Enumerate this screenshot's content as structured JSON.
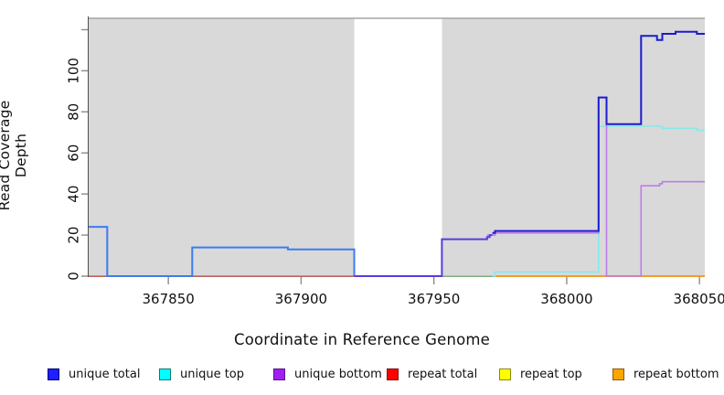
{
  "figure": {
    "xlabel": "Coordinate in Reference Genome",
    "ylabel": "Read Coverage Depth"
  },
  "chart_data": {
    "type": "line",
    "subtype": "step-after-coverage-plot",
    "title": "",
    "xlabel": "Coordinate in Reference Genome",
    "ylabel": "Read Coverage Depth",
    "xlim": [
      367820,
      368052
    ],
    "ylim": [
      0,
      126
    ],
    "x_ticks": [
      367850,
      367900,
      367950,
      368000,
      368050
    ],
    "y_ticks": [
      0,
      20,
      40,
      60,
      80,
      100
    ],
    "y_unlabeled_ticks": [
      120
    ],
    "grid": false,
    "legend_position": "bottom",
    "plot_bg_color": "#d9d9d9",
    "background_regions": [
      {
        "x0": 367820,
        "x1": 367920,
        "color": "#d9d9d9"
      },
      {
        "x0": 367920,
        "x1": 367953,
        "color": "#ffffff"
      },
      {
        "x0": 367953,
        "x1": 368052,
        "color": "#d9d9d9"
      }
    ],
    "top_border_color": "#a6a6a6",
    "series": [
      {
        "name": "unique total",
        "color": "#0000cd",
        "step_points": [
          [
            367820,
            24
          ],
          [
            367827,
            0
          ],
          [
            367859,
            14
          ],
          [
            367895,
            13
          ],
          [
            367920,
            0
          ],
          [
            367953,
            18
          ],
          [
            367970,
            19
          ],
          [
            367971,
            20
          ],
          [
            367972,
            21
          ],
          [
            367973,
            22
          ],
          [
            368012,
            87
          ],
          [
            368015,
            74
          ],
          [
            368028,
            117
          ],
          [
            368034,
            115
          ],
          [
            368036,
            118
          ],
          [
            368041,
            119
          ],
          [
            368049,
            118
          ]
        ],
        "x_end": 368052
      },
      {
        "name": "unique top",
        "color": "#00ffff",
        "step_points": [
          [
            367820,
            0
          ],
          [
            367973,
            2
          ],
          [
            368012,
            73
          ],
          [
            368036,
            72
          ],
          [
            368049,
            71
          ]
        ],
        "x_end": 368052
      },
      {
        "name": "unique bottom",
        "color": "#a020f0",
        "step_points": [
          [
            367820,
            0
          ],
          [
            367953,
            18
          ],
          [
            367970,
            20
          ],
          [
            367973,
            21
          ],
          [
            368012,
            87
          ],
          [
            368015,
            0
          ],
          [
            368028,
            44
          ],
          [
            368035,
            45
          ],
          [
            368036,
            46
          ]
        ],
        "x_end": 368052
      },
      {
        "name": "repeat total",
        "color": "#ff0000",
        "step_points": [
          [
            367820,
            0
          ]
        ],
        "x_end": 368052
      },
      {
        "name": "repeat top",
        "color": "#ffff00",
        "step_points": [
          [
            367820,
            0
          ]
        ],
        "x_end": 368052
      },
      {
        "name": "repeat bottom",
        "color": "#ffa500",
        "step_points": [
          [
            367820,
            0
          ]
        ],
        "x_end": 368052
      }
    ],
    "render_lines": [
      {
        "name": "repeat-total-line",
        "color": "#e06868",
        "width": 1.5,
        "pts": [
          [
            367820,
            0
          ]
        ],
        "end": 367953
      },
      {
        "name": "repeat-top-line",
        "color": "#8fca8f",
        "width": 1.5,
        "pts": [
          [
            367953,
            0
          ]
        ],
        "end": 367974
      },
      {
        "name": "repeat-bottom-line",
        "color": "#f89b28",
        "width": 2,
        "pts": [
          [
            367973,
            0
          ]
        ],
        "end": 368052
      },
      {
        "name": "unique-top-line",
        "color": "#86e9e9",
        "width": 1.6,
        "pts": [
          [
            367972,
            0
          ],
          [
            367973,
            2
          ],
          [
            368012,
            73
          ],
          [
            368036,
            72
          ],
          [
            368049,
            71
          ]
        ],
        "end": 368052
      },
      {
        "name": "unique-bottom-line",
        "color": "#bd7bec",
        "width": 1.6,
        "pts": [
          [
            367970,
            20
          ],
          [
            367973,
            21
          ],
          [
            368012,
            87
          ],
          [
            368015,
            0
          ],
          [
            368028,
            44
          ],
          [
            368035,
            45
          ],
          [
            368036,
            46
          ]
        ],
        "end": 368052
      },
      {
        "name": "unique-total-left-line",
        "color": "#3d7bf2",
        "width": 2,
        "pts": [
          [
            367820,
            24
          ],
          [
            367827,
            0
          ],
          [
            367859,
            14
          ],
          [
            367895,
            13
          ],
          [
            367920,
            0
          ]
        ],
        "end": 367920
      },
      {
        "name": "unique-total-gap-line",
        "color": "#5b3be0",
        "width": 2,
        "pts": [
          [
            367920,
            0
          ],
          [
            367953,
            18
          ],
          [
            367970,
            19
          ],
          [
            367971,
            20
          ]
        ],
        "end": 367972
      },
      {
        "name": "unique-total-right-line",
        "color": "#1c1cce",
        "width": 2,
        "pts": [
          [
            367972,
            21
          ],
          [
            367973,
            22
          ],
          [
            368012,
            87
          ],
          [
            368015,
            74
          ],
          [
            368028,
            117
          ],
          [
            368034,
            115
          ],
          [
            368036,
            118
          ],
          [
            368041,
            119
          ],
          [
            368049,
            118
          ]
        ],
        "end": 368052
      }
    ],
    "legend": [
      {
        "label": "unique total",
        "fill": "#1f1fff",
        "border": "#000080"
      },
      {
        "label": "unique top",
        "fill": "#00ffff",
        "border": "#007d7d"
      },
      {
        "label": "unique bottom",
        "fill": "#a020f0",
        "border": "#5a1390"
      },
      {
        "label": "repeat total",
        "fill": "#ff0000",
        "border": "#8b0000"
      },
      {
        "label": "repeat top",
        "fill": "#ffff00",
        "border": "#8b8b00"
      },
      {
        "label": "repeat bottom",
        "fill": "#ffa500",
        "border": "#8b5a00"
      }
    ]
  }
}
